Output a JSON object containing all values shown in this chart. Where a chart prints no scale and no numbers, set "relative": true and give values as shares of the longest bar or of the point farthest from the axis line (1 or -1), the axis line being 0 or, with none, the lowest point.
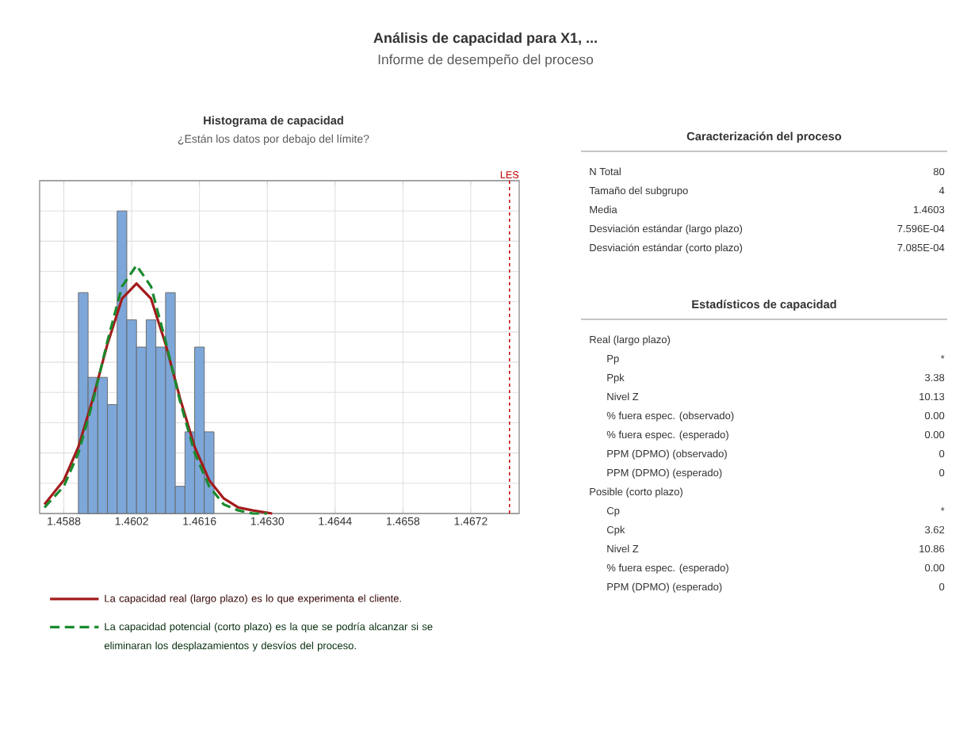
{
  "chart_data": [
    {
      "type": "other",
      "title": "Análisis de capacidad para X1, ...",
      "subtitle": "Informe de desempeño del proceso"
    },
    {
      "type": "histogram",
      "title": "Histograma de capacidad",
      "subtitle": "¿Están los datos por debajo del límite?",
      "relative": true,
      "bins": [
        1.4591,
        1.4593,
        1.4595,
        1.4597,
        1.4599,
        1.4601,
        1.4603,
        1.4605,
        1.4607,
        1.4609,
        1.4611,
        1.4613,
        1.4615,
        1.4617,
        1.4619
      ],
      "values": [
        0.73,
        0.45,
        0.45,
        0.36,
        1,
        0.64,
        0.55,
        0.64,
        0.55,
        0.73,
        0.09,
        0.27,
        0.55,
        0.27
      ],
      "color": "#7da7d9",
      "series": [
        {
          "type": "line",
          "name": "La capacidad real (largo plazo) es lo que experimenta el cliente.",
          "color": "#a31b1b",
          "line_style": "solid",
          "x": [
            1.4584,
            1.4588,
            1.4591,
            1.4594,
            1.4597,
            1.46,
            1.4603,
            1.4606,
            1.4609,
            1.4612,
            1.4615,
            1.4618,
            1.4621,
            1.4624,
            1.4627,
            1.4631
          ],
          "values": [
            0.03,
            0.11,
            0.22,
            0.38,
            0.56,
            0.71,
            0.76,
            0.71,
            0.56,
            0.38,
            0.22,
            0.11,
            0.05,
            0.02,
            0.01,
            0
          ]
        },
        {
          "type": "line",
          "name": "La capacidad potencial (corto plazo) es la que se podría alcanzar si se eliminaran los desplazamientos y desvíos del proceso.",
          "color": "#1a8a2e",
          "line_style": "dashed",
          "x": [
            1.4584,
            1.4588,
            1.4591,
            1.4594,
            1.4597,
            1.46,
            1.4603,
            1.4606,
            1.4609,
            1.4612,
            1.4615,
            1.4618,
            1.4621,
            1.4624,
            1.4627,
            1.463
          ],
          "values": [
            0.02,
            0.09,
            0.2,
            0.37,
            0.57,
            0.75,
            0.82,
            0.75,
            0.57,
            0.37,
            0.2,
            0.09,
            0.03,
            0.01,
            0,
            0
          ]
        }
      ],
      "xlim": [
        1.4583,
        1.4682
      ],
      "xticks": [
        1.4588,
        1.4602,
        1.4616,
        {
          "value": 1.463,
          "label": "1.4630"
        },
        1.4644,
        1.4658,
        1.4672
      ],
      "ref_lines": [
        {
          "axis": "x",
          "value": 1.468,
          "label": "LES",
          "color": "#c00000",
          "line_style": "dashed"
        }
      ],
      "grid": true,
      "legend": "bottom",
      "marker": "none"
    },
    {
      "type": "other",
      "title": "Caracterización del proceso",
      "categories": [
        "N Total",
        "Tamaño del subgrupo",
        "Media",
        "Desviación estándar (largo plazo)",
        "Desviación estándar (corto plazo)"
      ],
      "value_labels": [
        "80",
        "4",
        "1.4603",
        "7.596E-04",
        "7.085E-04"
      ]
    },
    {
      "type": "other",
      "title": "Estadísticos de capacidad",
      "categories": [
        "Real (largo plazo)",
        "Pp",
        "Ppk",
        "Nivel Z",
        "% fuera espec. (observado)",
        "% fuera espec. (esperado)",
        "PPM (DPMO) (observado)",
        "PPM (DPMO) (esperado)",
        "Posible (corto plazo)",
        "Cp",
        "Cpk",
        "Nivel Z",
        "% fuera espec. (esperado)",
        "PPM (DPMO) (esperado)"
      ],
      "value_labels": [
        null,
        "*",
        "3.38",
        "10.13",
        "0.00",
        "0.00",
        "0",
        "0",
        null,
        "*",
        "3.62",
        "10.86",
        "0.00",
        "0"
      ]
    }
  ]
}
